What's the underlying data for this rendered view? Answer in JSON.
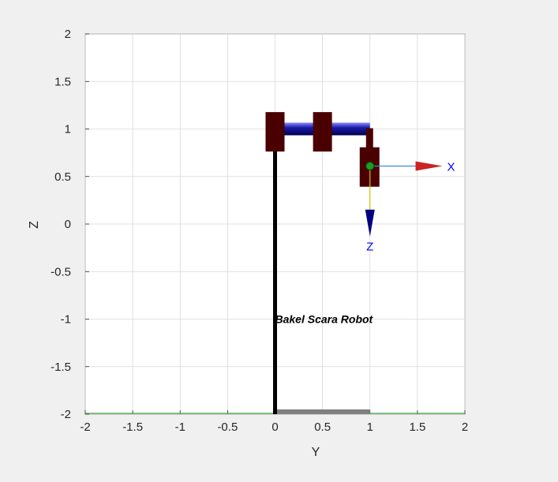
{
  "chart_data": {
    "type": "scatter",
    "title": "",
    "xlabel": "Y",
    "ylabel": "Z",
    "xlim": [
      -2,
      2
    ],
    "ylim": [
      -2,
      2
    ],
    "grid": true,
    "x_ticks": [
      "-2",
      "-1.5",
      "-1",
      "-0.5",
      "0",
      "0.5",
      "1",
      "1.5",
      "2"
    ],
    "y_ticks": [
      "2",
      "1.5",
      "1",
      "0.5",
      "0",
      "-0.5",
      "-1",
      "-1.5",
      "-2"
    ],
    "annotation": "Bakel Scara Robot",
    "robot": {
      "base_plate": {
        "y0": 0,
        "y1": 1,
        "z": -2
      },
      "column": {
        "y": 0,
        "z0": -2,
        "z1": 1
      },
      "joint_blocks": [
        {
          "y": 0,
          "z": 0.97
        },
        {
          "y": 0.5,
          "z": 0.97
        }
      ],
      "arm": {
        "y0": 0.08,
        "y1": 1,
        "z": 1.0
      },
      "end_effector": {
        "y": 1,
        "z": 0.6
      },
      "frame_origin": {
        "y": 1,
        "z": 0.61
      },
      "frame_axes": [
        {
          "label": "X",
          "y": 1.78,
          "z": 0.61,
          "color": "#0000ff"
        },
        {
          "label": "Z",
          "y": 1,
          "z": -0.18,
          "color": "#0000ff"
        }
      ]
    },
    "colors": {
      "joint": "#4a0000",
      "arm": "#1a1aa8",
      "column": "#000000",
      "base": "#808080",
      "frame_arrow_x": "#cc2222",
      "frame_arrow_z": "#000080",
      "grid": "#d8d8d8",
      "floor_line": "#4caf50"
    }
  }
}
